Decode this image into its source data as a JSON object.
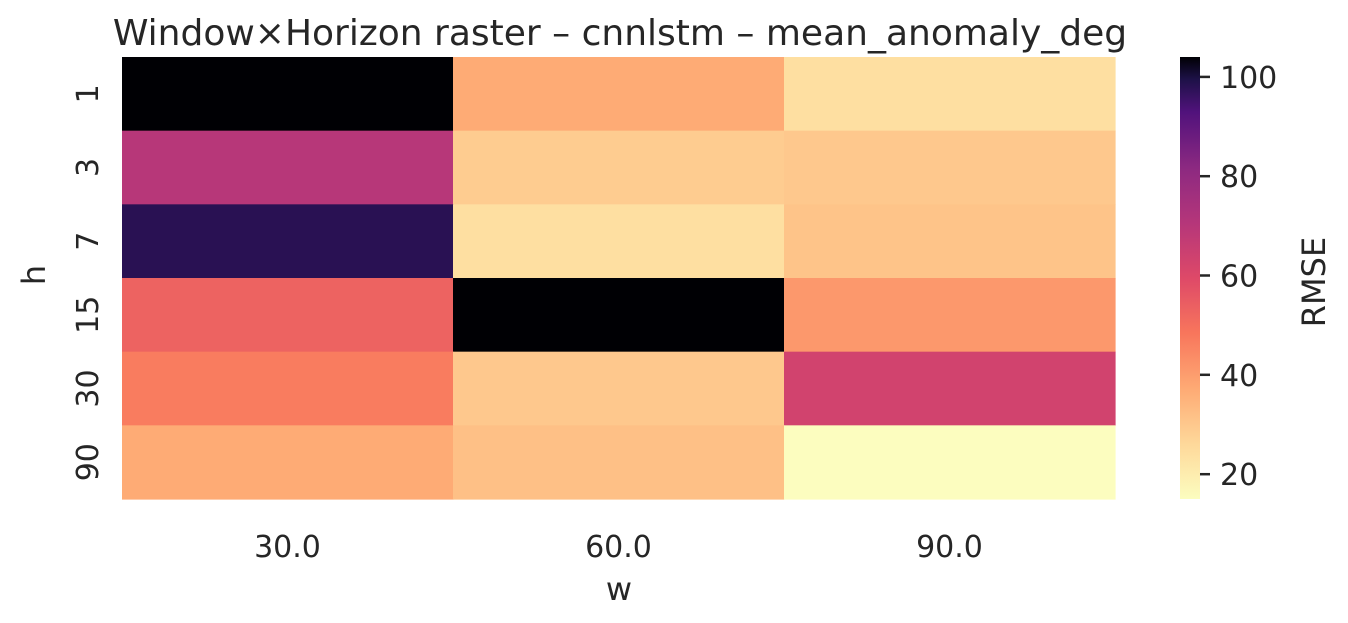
{
  "chart_data": {
    "type": "heatmap",
    "title": "Window×Horizon raster – cnnlstm – mean_anomaly_deg",
    "xlabel": "w",
    "ylabel": "h",
    "x_categories": [
      "30.0",
      "60.0",
      "90.0"
    ],
    "y_categories": [
      "1",
      "3",
      "7",
      "15",
      "30",
      "90"
    ],
    "values": [
      [
        104,
        37,
        24
      ],
      [
        70,
        29,
        30
      ],
      [
        98,
        24,
        31
      ],
      [
        53,
        104,
        41
      ],
      [
        47,
        30,
        63
      ],
      [
        37,
        32,
        15
      ]
    ],
    "colorbar": {
      "label": "RMSE",
      "min": 15,
      "max": 104,
      "ticks": [
        20,
        40,
        60,
        80,
        100
      ]
    },
    "colormap": "magma_r",
    "grid": false
  }
}
